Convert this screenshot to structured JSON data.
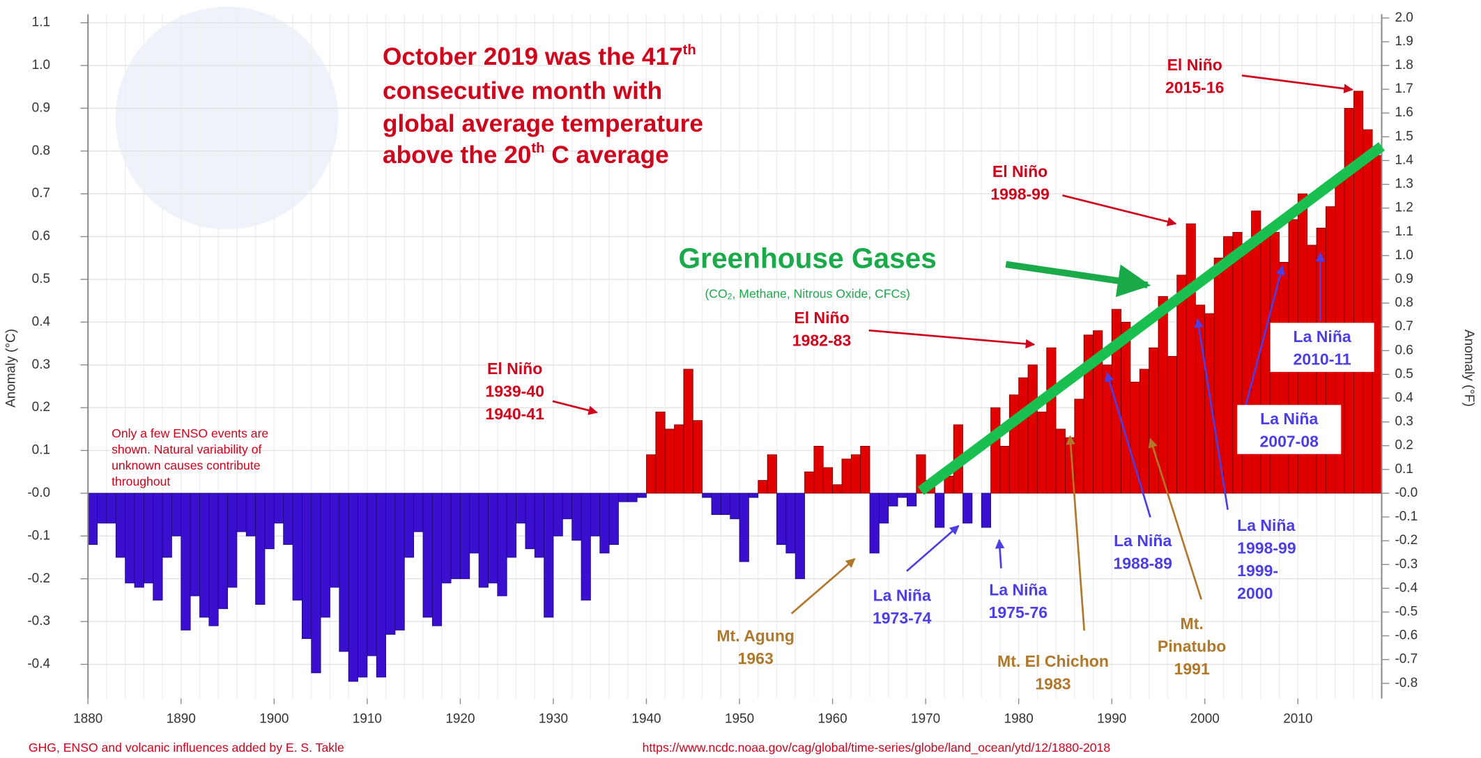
{
  "chart_data": {
    "type": "bar",
    "title_lines": [
      [
        "October 2019 was the 417",
        "th"
      ],
      [
        "consecutive month with"
      ],
      [
        "global average temperature"
      ],
      [
        "above the  20",
        "th",
        " C average"
      ]
    ],
    "ylabel": "Anomaly (°C)",
    "y2label": "Anomaly (°F)",
    "x": [
      1880,
      1881,
      1882,
      1883,
      1884,
      1885,
      1886,
      1887,
      1888,
      1889,
      1890,
      1891,
      1892,
      1893,
      1894,
      1895,
      1896,
      1897,
      1898,
      1899,
      1900,
      1901,
      1902,
      1903,
      1904,
      1905,
      1906,
      1907,
      1908,
      1909,
      1910,
      1911,
      1912,
      1913,
      1914,
      1915,
      1916,
      1917,
      1918,
      1919,
      1920,
      1921,
      1922,
      1923,
      1924,
      1925,
      1926,
      1927,
      1928,
      1929,
      1930,
      1931,
      1932,
      1933,
      1934,
      1935,
      1936,
      1937,
      1938,
      1939,
      1940,
      1941,
      1942,
      1943,
      1944,
      1945,
      1946,
      1947,
      1948,
      1949,
      1950,
      1951,
      1952,
      1953,
      1954,
      1955,
      1956,
      1957,
      1958,
      1959,
      1960,
      1961,
      1962,
      1963,
      1964,
      1965,
      1966,
      1967,
      1968,
      1969,
      1970,
      1971,
      1972,
      1973,
      1974,
      1975,
      1976,
      1977,
      1978,
      1979,
      1980,
      1981,
      1982,
      1983,
      1984,
      1985,
      1986,
      1987,
      1988,
      1989,
      1990,
      1991,
      1992,
      1993,
      1994,
      1995,
      1996,
      1997,
      1998,
      1999,
      2000,
      2001,
      2002,
      2003,
      2004,
      2005,
      2006,
      2007,
      2008,
      2009,
      2010,
      2011,
      2012,
      2013,
      2014,
      2015,
      2016,
      2017,
      2018
    ],
    "values": [
      -0.12,
      -0.07,
      -0.07,
      -0.15,
      -0.21,
      -0.22,
      -0.21,
      -0.25,
      -0.15,
      -0.1,
      -0.32,
      -0.24,
      -0.29,
      -0.31,
      -0.27,
      -0.22,
      -0.09,
      -0.1,
      -0.26,
      -0.13,
      -0.07,
      -0.12,
      -0.25,
      -0.34,
      -0.42,
      -0.29,
      -0.22,
      -0.37,
      -0.44,
      -0.43,
      -0.38,
      -0.43,
      -0.33,
      -0.32,
      -0.15,
      -0.09,
      -0.29,
      -0.31,
      -0.21,
      -0.2,
      -0.2,
      -0.14,
      -0.22,
      -0.21,
      -0.24,
      -0.15,
      -0.07,
      -0.13,
      -0.15,
      -0.29,
      -0.1,
      -0.06,
      -0.11,
      -0.25,
      -0.1,
      -0.14,
      -0.12,
      -0.02,
      -0.02,
      -0.01,
      0.09,
      0.19,
      0.15,
      0.16,
      0.29,
      0.17,
      -0.01,
      -0.05,
      -0.05,
      -0.06,
      -0.16,
      -0.01,
      0.03,
      0.09,
      -0.12,
      -0.14,
      -0.2,
      0.05,
      0.11,
      0.06,
      0.02,
      0.08,
      0.09,
      0.11,
      -0.14,
      -0.07,
      -0.03,
      -0.01,
      -0.03,
      0.09,
      0.03,
      -0.08,
      0.04,
      0.16,
      -0.07,
      0,
      -0.08,
      0.2,
      0.11,
      0.23,
      0.27,
      0.3,
      0.19,
      0.34,
      0.15,
      0.13,
      0.22,
      0.37,
      0.38,
      0.3,
      0.43,
      0.4,
      0.26,
      0.29,
      0.34,
      0.46,
      0.32,
      0.51,
      0.63,
      0.44,
      0.42,
      0.55,
      0.6,
      0.61,
      0.57,
      0.66,
      0.61,
      0.61,
      0.54,
      0.64,
      0.7,
      0.58,
      0.62,
      0.67,
      0.74,
      0.9,
      0.94,
      0.85,
      0.79
    ],
    "positive_color": "#e00000",
    "negative_color": "#3a0fd0",
    "xlim": [
      1880,
      2019
    ],
    "xticks": [
      1880,
      1890,
      1900,
      1910,
      1920,
      1930,
      1940,
      1950,
      1960,
      1970,
      1980,
      1990,
      2000,
      2010
    ],
    "ylim": [
      -0.48,
      1.12
    ],
    "yticks": [
      1.1,
      {
        "value": 1,
        "label": "1.0"
      },
      0.9,
      0.8,
      0.7,
      0.6,
      0.5,
      0.4,
      0.3,
      0.2,
      0.1,
      {
        "value": 0,
        "label": "-0.0"
      },
      -0.1,
      -0.2,
      -0.3,
      -0.4
    ],
    "y2lim": [
      -0.864,
      2.016
    ],
    "y2ticks": [
      {
        "value": 2,
        "label": "2.0"
      },
      1.9,
      1.8,
      1.7,
      1.6,
      1.5,
      1.4,
      1.3,
      1.2,
      1.1,
      {
        "value": 1,
        "label": "1.0"
      },
      0.9,
      0.8,
      0.7,
      0.6,
      0.5,
      0.4,
      0.3,
      0.2,
      0.1,
      {
        "value": 0,
        "label": "-0.0"
      },
      -0.1,
      -0.2,
      -0.3,
      -0.4,
      -0.5,
      -0.6,
      -0.7,
      -0.8
    ],
    "grid": true,
    "annotations": [
      {
        "lines": [
          "El Niño",
          "1939-40",
          "1940-41"
        ],
        "color": "#d0021b"
      },
      {
        "lines": [
          "El Niño",
          "1982-83"
        ],
        "color": "#d0021b"
      },
      {
        "lines": [
          "El Niño",
          "1998-99"
        ],
        "color": "#d0021b"
      },
      {
        "lines": [
          "El Niño",
          "2015-16"
        ],
        "color": "#d0021b"
      },
      {
        "lines": [
          "La Niña",
          "1973-74"
        ],
        "color": "#4b3ee6"
      },
      {
        "lines": [
          "La Niña",
          "1975-76"
        ],
        "color": "#4b3ee6"
      },
      {
        "lines": [
          "La Niña",
          "1988-89"
        ],
        "color": "#4b3ee6"
      },
      {
        "lines": [
          "La Niña",
          "1998-99",
          "1999-",
          "2000"
        ],
        "color": "#4b3ee6"
      },
      {
        "lines": [
          "La Niña",
          "2007-08"
        ],
        "color": "#4b3ee6"
      },
      {
        "lines": [
          "La Niña",
          "2010-11"
        ],
        "color": "#4b3ee6"
      },
      {
        "lines": [
          "Mt. Agung",
          "1963"
        ],
        "color": "#b0782a"
      },
      {
        "lines": [
          "Mt. El Chichon",
          "1983"
        ],
        "color": "#b0782a"
      },
      {
        "lines": [
          "Mt.",
          "Pinatubo",
          "1991"
        ],
        "color": "#b0782a"
      },
      {
        "lines": [
          "Greenhouse Gases"
        ],
        "color": "#1aaa4a"
      },
      {
        "lines": [
          "Only a few ENSO events are",
          "shown. Natural variability of",
          "unknown causes contribute",
          "throughout"
        ],
        "color": "#d0021b"
      }
    ],
    "ghg_subtitle": [
      "(CO",
      "2",
      ", Methane, Nitrous Oxide, CFCs)"
    ],
    "credit": "GHG, ENSO and volcanic influences added by E. S. Takle",
    "source": "https://www.ncdc.noaa.gov/cag/global/time-series/globe/land_ocean/ytd/12/1880-2018"
  }
}
